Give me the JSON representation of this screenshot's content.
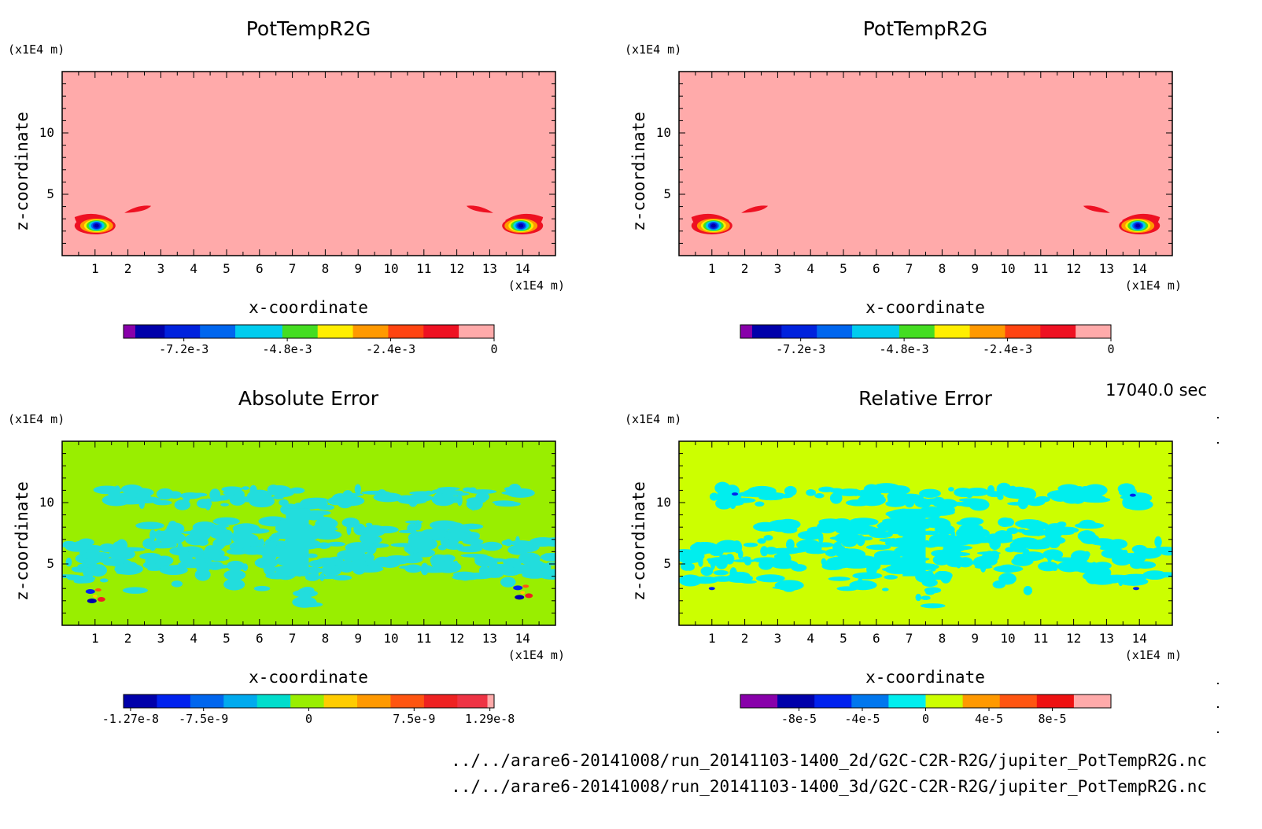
{
  "time_label": "17040.0 sec",
  "footer_lines": [
    "../../arare6-20141008/run_20141103-1400_2d/G2C-C2R-R2G/jupiter_PotTempR2G.nc",
    "../../arare6-20141008/run_20141103-1400_3d/G2C-C2R-R2G/jupiter_PotTempR2G.nc"
  ],
  "chart_data": [
    {
      "type": "heatmap",
      "title": "PotTempR2G",
      "xlabel": "x-coordinate",
      "ylabel": "z-coordinate",
      "x_unit": "(x1E4 m)",
      "y_unit": "(x1E4 m)",
      "xlim": [
        0,
        15
      ],
      "ylim": [
        0,
        15
      ],
      "x_ticks": [
        1,
        2,
        3,
        4,
        5,
        6,
        7,
        8,
        9,
        10,
        11,
        12,
        13,
        14
      ],
      "y_ticks": [
        5,
        10
      ],
      "background_value": 0,
      "background_color": "#ffaaaa",
      "features": [
        {
          "kind": "vortex",
          "x": 1.0,
          "z": 2.5,
          "min": -0.0085
        },
        {
          "kind": "filament",
          "x": 2.3,
          "z": 3.8
        },
        {
          "kind": "vortex",
          "x": 14.0,
          "z": 2.5,
          "min": -0.0085
        },
        {
          "kind": "filament",
          "x": 12.7,
          "z": 3.8
        }
      ],
      "colorbar": {
        "colors": [
          "#8800aa",
          "#0000aa",
          "#0022dd",
          "#0066ee",
          "#00ccee",
          "#44dd22",
          "#ffee00",
          "#ff9900",
          "#ff4411",
          "#ee1122",
          "#ffaaaa"
        ],
        "weights": [
          1,
          2.5,
          3,
          3,
          4,
          3,
          3,
          3,
          3,
          3,
          3
        ],
        "tick_labels": [
          "-7.2e-3",
          "-4.8e-3",
          "-2.4e-3",
          "0"
        ],
        "tick_values": [
          -0.0072,
          -0.0048,
          -0.0024,
          0
        ],
        "range": [
          -0.0086,
          0
        ]
      }
    },
    {
      "type": "heatmap",
      "title": "PotTempR2G",
      "xlabel": "x-coordinate",
      "ylabel": "z-coordinate",
      "x_unit": "(x1E4 m)",
      "y_unit": "(x1E4 m)",
      "xlim": [
        0,
        15
      ],
      "ylim": [
        0,
        15
      ],
      "x_ticks": [
        1,
        2,
        3,
        4,
        5,
        6,
        7,
        8,
        9,
        10,
        11,
        12,
        13,
        14
      ],
      "y_ticks": [
        5,
        10
      ],
      "background_value": 0,
      "background_color": "#ffaaaa",
      "features": [
        {
          "kind": "vortex",
          "x": 1.0,
          "z": 2.5,
          "min": -0.0085
        },
        {
          "kind": "filament",
          "x": 2.3,
          "z": 3.8
        },
        {
          "kind": "vortex",
          "x": 14.0,
          "z": 2.5,
          "min": -0.0085
        },
        {
          "kind": "filament",
          "x": 12.7,
          "z": 3.8
        }
      ],
      "colorbar": {
        "colors": [
          "#8800aa",
          "#0000aa",
          "#0022dd",
          "#0066ee",
          "#00ccee",
          "#44dd22",
          "#ffee00",
          "#ff9900",
          "#ff4411",
          "#ee1122",
          "#ffaaaa"
        ],
        "weights": [
          1,
          2.5,
          3,
          3,
          4,
          3,
          3,
          3,
          3,
          3,
          3
        ],
        "tick_labels": [
          "-7.2e-3",
          "-4.8e-3",
          "-2.4e-3",
          "0"
        ],
        "tick_values": [
          -0.0072,
          -0.0048,
          -0.0024,
          0
        ],
        "range": [
          -0.0086,
          0
        ]
      }
    },
    {
      "type": "heatmap",
      "title": "Absolute Error",
      "xlabel": "x-coordinate",
      "ylabel": "z-coordinate",
      "x_unit": "(x1E4 m)",
      "y_unit": "(x1E4 m)",
      "xlim": [
        0,
        15
      ],
      "ylim": [
        0,
        15
      ],
      "x_ticks": [
        1,
        2,
        3,
        4,
        5,
        6,
        7,
        8,
        9,
        10,
        11,
        12,
        13,
        14
      ],
      "y_ticks": [
        5,
        10
      ],
      "background_value": 0,
      "background_color": "#99ee00",
      "secondary_color": "#22dddd",
      "features": [
        {
          "kind": "dipole",
          "x": 1.0,
          "z": 2.5
        },
        {
          "kind": "dipole",
          "x": 14.0,
          "z": 2.8
        }
      ],
      "colorbar": {
        "colors": [
          "#0000aa",
          "#0022ee",
          "#0066ee",
          "#00aaee",
          "#00ddcc",
          "#99ee00",
          "#ffcc00",
          "#ff9900",
          "#ff5511",
          "#ee2222",
          "#ee3344",
          "#ffaaaa"
        ],
        "weights": [
          2,
          2,
          2,
          2,
          2,
          2,
          2,
          2,
          2,
          2,
          1.8,
          0.4
        ],
        "tick_labels": [
          "-1.27e-8",
          "-7.5e-9",
          "0",
          "7.5e-9",
          "1.29e-8"
        ],
        "tick_values": [
          -1.27e-08,
          -7.5e-09,
          0,
          7.5e-09,
          1.29e-08
        ],
        "range": [
          -1.32e-08,
          1.32e-08
        ]
      }
    },
    {
      "type": "heatmap",
      "title": "Relative Error",
      "xlabel": "x-coordinate",
      "ylabel": "z-coordinate",
      "x_unit": "(x1E4 m)",
      "y_unit": "(x1E4 m)",
      "xlim": [
        0,
        15
      ],
      "ylim": [
        0,
        15
      ],
      "x_ticks": [
        1,
        2,
        3,
        4,
        5,
        6,
        7,
        8,
        9,
        10,
        11,
        12,
        13,
        14
      ],
      "y_ticks": [
        5,
        10
      ],
      "background_value": 0,
      "background_color": "#ccff00",
      "secondary_color": "#00eeee",
      "features": [
        {
          "kind": "spot",
          "x": 1.0,
          "z": 3.0
        },
        {
          "kind": "spot",
          "x": 1.7,
          "z": 10.7
        },
        {
          "kind": "spot",
          "x": 13.8,
          "z": 10.6
        },
        {
          "kind": "spot",
          "x": 13.9,
          "z": 3.0
        }
      ],
      "colorbar": {
        "colors": [
          "#8800aa",
          "#0000aa",
          "#0022ee",
          "#0077ee",
          "#00eeee",
          "#ccff00",
          "#ff9900",
          "#ff5511",
          "#ee1111",
          "#ffaaaa"
        ],
        "weights": [
          1,
          1,
          1,
          1,
          1,
          1,
          1,
          1,
          1,
          1
        ],
        "tick_labels": [
          "-8e-5",
          "-4e-5",
          "0",
          "4e-5",
          "8e-5"
        ],
        "tick_values": [
          -8e-05,
          -4e-05,
          0,
          4e-05,
          8e-05
        ],
        "range": [
          -0.000117,
          0.000117
        ]
      }
    }
  ]
}
